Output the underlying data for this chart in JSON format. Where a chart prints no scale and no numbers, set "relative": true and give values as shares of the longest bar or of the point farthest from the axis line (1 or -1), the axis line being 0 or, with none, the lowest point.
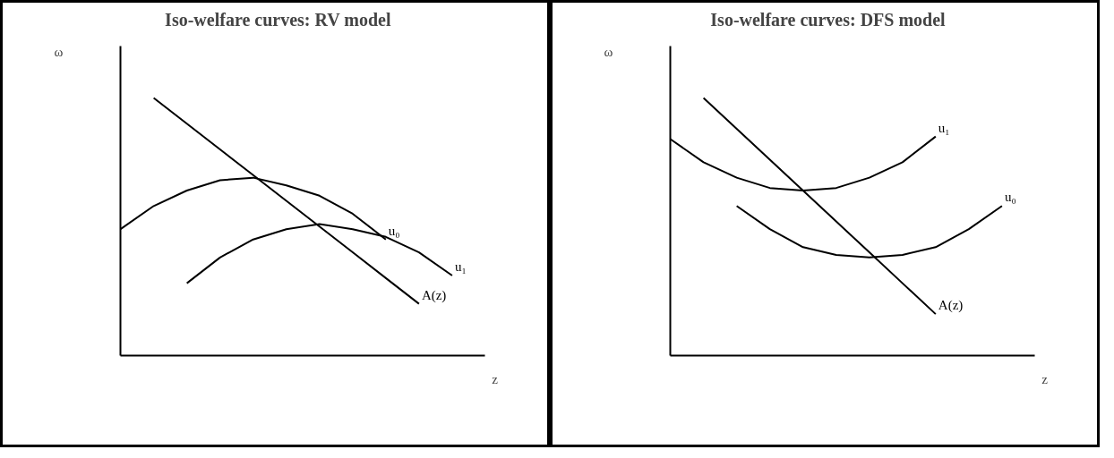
{
  "chart_data": [
    {
      "type": "line",
      "title": "Iso-welfare curves: RV model",
      "xlabel": "z",
      "ylabel": "ω",
      "relative": true,
      "grid": false,
      "categories": [
        null,
        null,
        null,
        null,
        null,
        null,
        null,
        null,
        null,
        null,
        null
      ],
      "series": [
        {
          "name": "A(z)",
          "color": "#000000",
          "values": [
            null,
            1.0,
            0.9,
            0.8,
            0.7,
            0.6,
            0.5,
            0.4,
            0.3,
            0.2,
            null
          ]
        },
        {
          "name": "u₀",
          "color": "#000000",
          "values": [
            0.49,
            0.58,
            0.64,
            0.68,
            0.69,
            0.66,
            0.62,
            0.55,
            0.45,
            null,
            null
          ]
        },
        {
          "name": "u₁",
          "color": "#000000",
          "values": [
            null,
            null,
            0.28,
            0.38,
            0.45,
            0.49,
            0.51,
            0.49,
            0.46,
            0.4,
            0.31
          ]
        }
      ]
    },
    {
      "type": "line",
      "title": "Iso-welfare curves: DFS model",
      "xlabel": "z",
      "ylabel": "ω",
      "relative": true,
      "grid": false,
      "categories": [
        null,
        null,
        null,
        null,
        null,
        null,
        null,
        null,
        null,
        null,
        null
      ],
      "series": [
        {
          "name": "A(z)",
          "color": "#000000",
          "values": [
            null,
            1.0,
            0.88,
            0.76,
            0.64,
            0.52,
            0.4,
            0.28,
            0.16,
            null,
            null
          ]
        },
        {
          "name": "u₁",
          "color": "#000000",
          "values": [
            0.84,
            0.75,
            0.69,
            0.65,
            0.64,
            0.65,
            0.69,
            0.75,
            0.85,
            null,
            null
          ]
        },
        {
          "name": "u₀",
          "color": "#000000",
          "values": [
            null,
            null,
            0.58,
            0.49,
            0.42,
            0.39,
            0.38,
            0.39,
            0.42,
            0.49,
            0.58
          ]
        }
      ]
    }
  ]
}
